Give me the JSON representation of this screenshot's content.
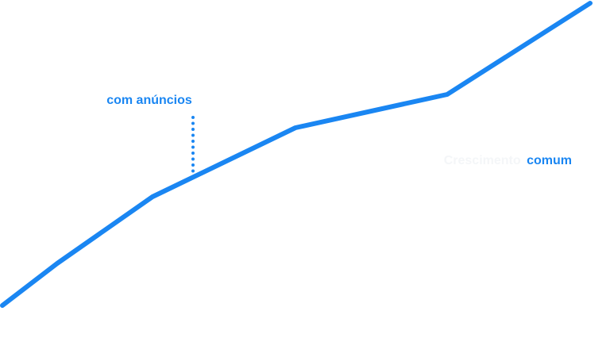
{
  "annotations": {
    "ads": "com anúncios",
    "organic": {
      "prefix": "Crescimento",
      "highlight": "comum"
    }
  }
}
